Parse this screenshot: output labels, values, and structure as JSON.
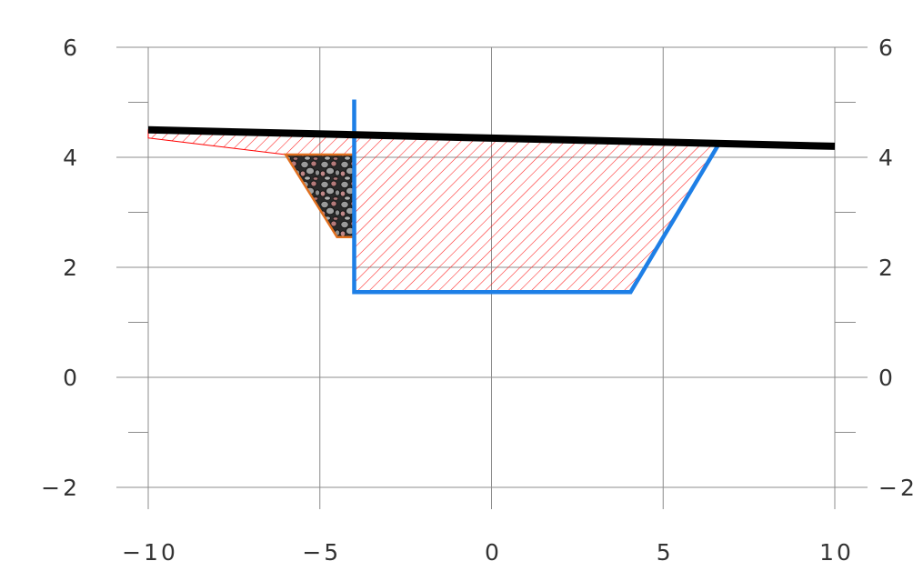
{
  "chart_data": {
    "type": "area",
    "title": "",
    "xlabel": "",
    "ylabel": "",
    "xlim": [
      -10,
      10
    ],
    "ylim": [
      -2,
      6
    ],
    "x_ticks": [
      -10,
      -5,
      0,
      5,
      10
    ],
    "x_tick_labels": [
      "−10",
      "−5",
      "0",
      "5",
      "10"
    ],
    "y_ticks": [
      -2,
      0,
      2,
      4,
      6
    ],
    "y_tick_labels": [
      "−2",
      "0",
      "2",
      "4",
      "6"
    ],
    "y_minor_ticks": [
      -1,
      1,
      3,
      5
    ],
    "grid": true,
    "legend": "none",
    "series": [
      {
        "role": "ground-surface",
        "color": "#000000",
        "points": [
          [
            -10,
            4.5
          ],
          [
            10,
            4.2
          ]
        ]
      },
      {
        "role": "channel-outline",
        "color": "#1E7FE6",
        "points": [
          [
            -4.0,
            5.05
          ],
          [
            -4.0,
            1.55
          ],
          [
            4.05,
            1.55
          ],
          [
            6.6,
            4.22
          ]
        ]
      },
      {
        "role": "hatched-fill-area",
        "color": "#FF0000",
        "points": [
          [
            -10,
            4.35
          ],
          [
            -6.0,
            4.05
          ],
          [
            -4.0,
            4.05
          ],
          [
            -4.0,
            1.55
          ],
          [
            4.05,
            1.55
          ],
          [
            6.6,
            4.22
          ],
          [
            -4.0,
            4.4
          ],
          [
            -10,
            4.5
          ]
        ]
      },
      {
        "role": "rock-fill-area",
        "color": "#E07020",
        "points": [
          [
            -6.0,
            4.05
          ],
          [
            -4.0,
            4.05
          ],
          [
            -4.0,
            2.55
          ],
          [
            -4.5,
            2.55
          ]
        ]
      }
    ]
  }
}
